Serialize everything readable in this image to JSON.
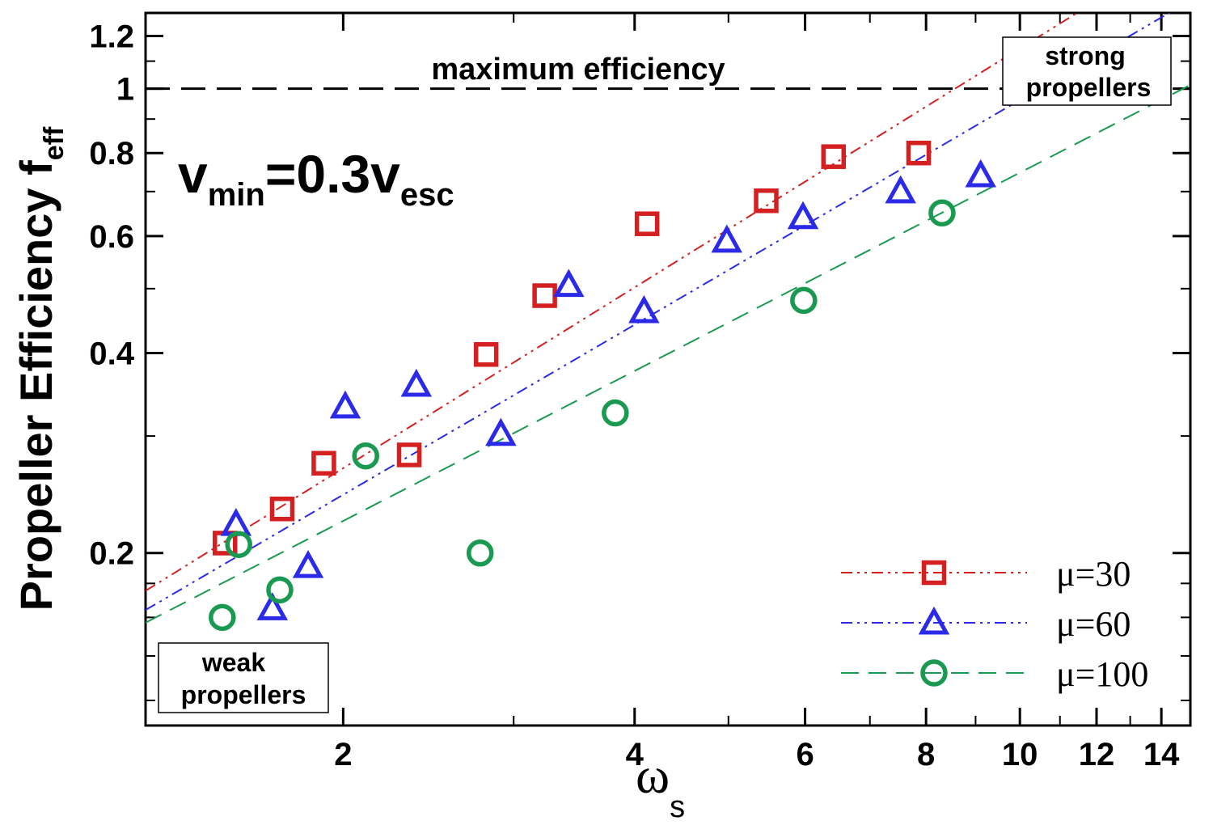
{
  "chart_data": {
    "type": "line",
    "x_scale": "log",
    "y_scale": "log",
    "xlim": [
      1.25,
      15
    ],
    "ylim": [
      0.11,
      1.3
    ],
    "xlabel": "ω",
    "xlabel_sub": "s",
    "ylabel": "Propeller Efficiency  f",
    "ylabel_sub": "eff",
    "x_ticks": [
      {
        "value": 2,
        "label": "2"
      },
      {
        "value": 4,
        "label": "4"
      },
      {
        "value": 6,
        "label": "6"
      },
      {
        "value": 8,
        "label": "8"
      },
      {
        "value": 10,
        "label": "10"
      },
      {
        "value": 12,
        "label": "12"
      },
      {
        "value": 14,
        "label": "14"
      }
    ],
    "x_minor_ticks": [
      3,
      5,
      7,
      9,
      11,
      13
    ],
    "y_ticks": [
      {
        "value": 0.2,
        "label": "0.2"
      },
      {
        "value": 0.4,
        "label": "0.4"
      },
      {
        "value": 0.6,
        "label": "0.6"
      },
      {
        "value": 0.8,
        "label": "0.8"
      },
      {
        "value": 1.0,
        "label": "1"
      },
      {
        "value": 1.2,
        "label": "1.2"
      }
    ],
    "y_minor_ticks": [
      0.12,
      0.14,
      0.16,
      0.18,
      0.3,
      0.5,
      0.7,
      0.9,
      1.1
    ],
    "reference_line": {
      "y": 1.0,
      "label": "maximum efficiency"
    },
    "annotations": {
      "vmin_main": "v",
      "vmin_sub": "min",
      "vmin_mid": "=0.3v",
      "vmin_sub2": "esc",
      "weak_line1": "weak",
      "weak_line2": "propellers",
      "strong_line1": "strong",
      "strong_line2": "propellers"
    },
    "series": [
      {
        "name": "μ=30",
        "legend_prefix": "μ",
        "legend_value": "=30",
        "color": "#d42020",
        "marker": "square",
        "dash": "14 6 3 6 3 6",
        "fit": {
          "a": 0.1434,
          "b": 0.904
        },
        "x": [
          1.51,
          1.73,
          1.91,
          2.34,
          2.81,
          3.23,
          4.12,
          5.47,
          6.42,
          7.86
        ],
        "y": [
          0.207,
          0.233,
          0.273,
          0.281,
          0.398,
          0.488,
          0.626,
          0.678,
          0.79,
          0.8
        ]
      },
      {
        "name": "μ=60",
        "legend_prefix": "μ",
        "legend_value": "=60",
        "color": "#2a2ae8",
        "marker": "triangle",
        "dash": "14 6 3 6 3 6",
        "fit": {
          "a": 0.1358,
          "b": 0.85
        },
        "x": [
          1.55,
          1.69,
          1.84,
          2.01,
          2.38,
          2.91,
          3.42,
          4.09,
          4.98,
          5.97,
          7.53,
          9.11
        ],
        "y": [
          0.221,
          0.165,
          0.191,
          0.332,
          0.358,
          0.302,
          0.506,
          0.462,
          0.59,
          0.64,
          0.7,
          0.74
        ]
      },
      {
        "name": "μ=100",
        "legend_prefix": "μ",
        "legend_value": "=100",
        "color": "#1a9a50",
        "marker": "circle",
        "dash": "22 12",
        "fit": {
          "a": 0.1329,
          "b": 0.75
        },
        "x": [
          1.5,
          1.56,
          1.72,
          2.11,
          2.77,
          3.82,
          5.98,
          8.31
        ],
        "y": [
          0.16,
          0.206,
          0.176,
          0.28,
          0.2,
          0.325,
          0.48,
          0.65
        ]
      }
    ]
  }
}
